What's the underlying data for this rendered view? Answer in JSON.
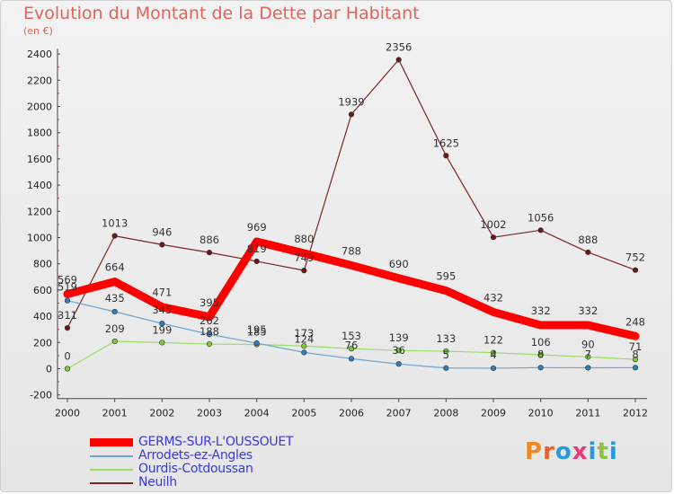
{
  "title": "Evolution du Montant de la Dette par Habitant",
  "subtitle": "(en €)",
  "logo": {
    "text": "Proxiti",
    "letter_colors": [
      "#f08a1e",
      "#e8632b",
      "#2a9ad8",
      "#e83c7a",
      "#2a9ad8",
      "#8ac43f",
      "#2a9ad8"
    ]
  },
  "chart_data": {
    "type": "line",
    "x": [
      "2000",
      "2001",
      "2002",
      "2003",
      "2004",
      "2005",
      "2006",
      "2007",
      "2008",
      "2009",
      "2010",
      "2011",
      "2012"
    ],
    "ylim": [
      -200,
      2400
    ],
    "yticks": [
      "-200",
      "0",
      "200",
      "400",
      "600",
      "800",
      "1000",
      "1200",
      "1400",
      "1600",
      "1800",
      "2000",
      "2200",
      "2400"
    ],
    "grid": false,
    "legend_position": "bottom-left",
    "series": [
      {
        "name": "GERMS-SUR-L'OUSSOUET",
        "color": "#ff0000",
        "values": [
          569,
          664,
          471,
          395,
          969,
          880,
          788,
          690,
          595,
          432,
          332,
          332,
          248
        ]
      },
      {
        "name": "Arrodets-ez-Angles",
        "color": "#6fa3d0",
        "values": [
          519,
          435,
          345,
          262,
          195,
          124,
          76,
          36,
          5,
          4,
          8,
          7,
          8
        ]
      },
      {
        "name": "Ourdis-Cotdoussan",
        "color": "#99dd66",
        "values": [
          0,
          209,
          199,
          188,
          185,
          173,
          153,
          139,
          133,
          122,
          106,
          90,
          71
        ]
      },
      {
        "name": "Neuilh",
        "color": "#7a2525",
        "values": [
          311,
          1013,
          946,
          886,
          819,
          749,
          1939,
          2356,
          1625,
          1002,
          1056,
          888,
          752
        ]
      }
    ]
  }
}
